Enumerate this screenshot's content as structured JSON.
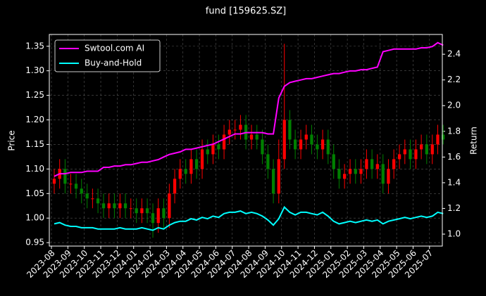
{
  "chart_data": {
    "type": "candlestick",
    "title": "fund [159625.SZ]",
    "ylabel": "Price",
    "y2label": "Return",
    "up_color": "#ff0000",
    "down_color": "#008000",
    "grid": true,
    "legend": "upper left",
    "x": [
      0.17,
      0.5,
      0.83,
      1.17,
      1.5,
      1.83,
      2.17,
      2.5,
      2.83,
      3.17,
      3.5,
      3.83,
      4.17,
      4.5,
      4.83,
      5.17,
      5.5,
      5.83,
      6.17,
      6.5,
      6.83,
      7.17,
      7.5,
      7.83,
      8.17,
      8.5,
      8.83,
      9.17,
      9.5,
      9.83,
      10.17,
      10.5,
      10.83,
      11.17,
      11.5,
      11.83,
      12.17,
      12.5,
      12.83,
      13.17,
      13.5,
      13.83,
      14.17,
      14.5,
      14.83,
      15.17,
      15.5,
      15.83,
      16.17,
      16.5,
      16.83,
      17.17,
      17.5,
      17.83,
      18.17,
      18.5,
      18.83,
      19.17,
      19.5,
      19.83,
      20.17,
      20.5,
      20.83,
      21.17,
      21.5,
      21.83,
      22.17,
      22.5,
      22.83,
      23.17,
      23.5,
      23.83
    ],
    "open": [
      1.07,
      1.08,
      1.1,
      1.07,
      1.07,
      1.06,
      1.05,
      1.04,
      1.04,
      1.03,
      1.02,
      1.03,
      1.02,
      1.03,
      1.02,
      1.02,
      1.01,
      1.02,
      1.01,
      0.99,
      1.02,
      1.0,
      1.05,
      1.08,
      1.1,
      1.09,
      1.12,
      1.1,
      1.14,
      1.13,
      1.15,
      1.14,
      1.17,
      1.18,
      1.18,
      1.19,
      1.16,
      1.17,
      1.16,
      1.13,
      1.1,
      1.05,
      1.12,
      1.2,
      1.16,
      1.14,
      1.16,
      1.17,
      1.15,
      1.14,
      1.16,
      1.13,
      1.1,
      1.08,
      1.09,
      1.1,
      1.09,
      1.1,
      1.12,
      1.1,
      1.11,
      1.07,
      1.1,
      1.12,
      1.13,
      1.14,
      1.12,
      1.14,
      1.15,
      1.13,
      1.15,
      1.17
    ],
    "high": [
      1.1,
      1.12,
      1.12,
      1.09,
      1.09,
      1.08,
      1.07,
      1.06,
      1.06,
      1.05,
      1.05,
      1.05,
      1.05,
      1.05,
      1.04,
      1.04,
      1.04,
      1.04,
      1.03,
      1.04,
      1.04,
      1.07,
      1.1,
      1.12,
      1.12,
      1.14,
      1.14,
      1.16,
      1.16,
      1.17,
      1.17,
      1.19,
      1.2,
      1.2,
      1.21,
      1.21,
      1.19,
      1.19,
      1.18,
      1.15,
      1.12,
      1.16,
      1.355,
      1.22,
      1.18,
      1.18,
      1.19,
      1.19,
      1.17,
      1.18,
      1.18,
      1.15,
      1.12,
      1.11,
      1.12,
      1.12,
      1.12,
      1.14,
      1.14,
      1.13,
      1.13,
      1.12,
      1.14,
      1.15,
      1.16,
      1.16,
      1.16,
      1.17,
      1.17,
      1.17,
      1.19,
      1.19
    ],
    "low": [
      1.05,
      1.06,
      1.05,
      1.05,
      1.04,
      1.03,
      1.02,
      1.02,
      1.01,
      1.0,
      1.0,
      1.0,
      1.0,
      1.0,
      1.0,
      0.99,
      0.99,
      0.99,
      0.96,
      0.97,
      0.98,
      0.98,
      1.03,
      1.06,
      1.07,
      1.07,
      1.08,
      1.08,
      1.11,
      1.11,
      1.12,
      1.12,
      1.15,
      1.16,
      1.16,
      1.14,
      1.14,
      1.14,
      1.11,
      1.08,
      1.03,
      1.03,
      1.1,
      1.14,
      1.12,
      1.12,
      1.14,
      1.13,
      1.12,
      1.12,
      1.11,
      1.08,
      1.06,
      1.06,
      1.07,
      1.07,
      1.07,
      1.08,
      1.08,
      1.08,
      1.05,
      1.05,
      1.08,
      1.1,
      1.11,
      1.1,
      1.1,
      1.12,
      1.11,
      1.11,
      1.13,
      1.15
    ],
    "close": [
      1.08,
      1.1,
      1.07,
      1.07,
      1.06,
      1.05,
      1.04,
      1.04,
      1.03,
      1.02,
      1.03,
      1.02,
      1.03,
      1.02,
      1.02,
      1.01,
      1.02,
      1.01,
      0.99,
      1.02,
      1.0,
      1.05,
      1.08,
      1.1,
      1.09,
      1.12,
      1.1,
      1.14,
      1.13,
      1.15,
      1.14,
      1.17,
      1.18,
      1.18,
      1.19,
      1.16,
      1.17,
      1.16,
      1.13,
      1.1,
      1.05,
      1.12,
      1.2,
      1.16,
      1.14,
      1.16,
      1.17,
      1.15,
      1.14,
      1.16,
      1.13,
      1.1,
      1.08,
      1.09,
      1.1,
      1.09,
      1.1,
      1.12,
      1.1,
      1.11,
      1.07,
      1.1,
      1.12,
      1.13,
      1.14,
      1.12,
      1.14,
      1.15,
      1.13,
      1.15,
      1.17,
      1.16
    ],
    "series": [
      {
        "name": "Swtool.com AI",
        "color": "#ff00ff",
        "axis": "y2",
        "values": [
          1.45,
          1.47,
          1.47,
          1.48,
          1.48,
          1.48,
          1.49,
          1.49,
          1.49,
          1.52,
          1.52,
          1.53,
          1.53,
          1.54,
          1.54,
          1.55,
          1.56,
          1.56,
          1.57,
          1.58,
          1.6,
          1.62,
          1.63,
          1.64,
          1.66,
          1.66,
          1.67,
          1.68,
          1.69,
          1.7,
          1.72,
          1.74,
          1.76,
          1.78,
          1.78,
          1.79,
          1.79,
          1.79,
          1.79,
          1.78,
          1.78,
          2.06,
          2.15,
          2.18,
          2.19,
          2.2,
          2.21,
          2.21,
          2.22,
          2.23,
          2.24,
          2.25,
          2.25,
          2.26,
          2.27,
          2.27,
          2.28,
          2.28,
          2.29,
          2.3,
          2.42,
          2.43,
          2.44,
          2.44,
          2.44,
          2.44,
          2.44,
          2.45,
          2.45,
          2.46,
          2.49,
          2.47
        ]
      },
      {
        "name": "Buy-and-Hold",
        "color": "#00ffff",
        "axis": "y2",
        "values": [
          1.08,
          1.09,
          1.07,
          1.06,
          1.06,
          1.05,
          1.05,
          1.05,
          1.04,
          1.04,
          1.04,
          1.04,
          1.05,
          1.04,
          1.04,
          1.04,
          1.05,
          1.04,
          1.03,
          1.05,
          1.04,
          1.07,
          1.09,
          1.1,
          1.1,
          1.12,
          1.11,
          1.13,
          1.12,
          1.14,
          1.13,
          1.16,
          1.17,
          1.17,
          1.18,
          1.16,
          1.17,
          1.16,
          1.14,
          1.11,
          1.07,
          1.12,
          1.21,
          1.17,
          1.15,
          1.17,
          1.17,
          1.16,
          1.15,
          1.17,
          1.14,
          1.1,
          1.08,
          1.09,
          1.1,
          1.09,
          1.1,
          1.11,
          1.1,
          1.11,
          1.08,
          1.1,
          1.11,
          1.12,
          1.13,
          1.12,
          1.13,
          1.14,
          1.13,
          1.14,
          1.17,
          1.16
        ]
      }
    ],
    "xlim": [
      -0.13,
      23.78
    ],
    "xticks": [
      {
        "value": 0,
        "label": "2023-08"
      },
      {
        "value": 1,
        "label": "2023-09"
      },
      {
        "value": 2,
        "label": "2023-10"
      },
      {
        "value": 3,
        "label": "2023-11"
      },
      {
        "value": 4,
        "label": "2023-12"
      },
      {
        "value": 5,
        "label": "2024-01"
      },
      {
        "value": 6,
        "label": "2024-02"
      },
      {
        "value": 7,
        "label": "2024-03"
      },
      {
        "value": 8,
        "label": "2024-04"
      },
      {
        "value": 9,
        "label": "2024-05"
      },
      {
        "value": 10,
        "label": "2024-06"
      },
      {
        "value": 11,
        "label": "2024-07"
      },
      {
        "value": 12,
        "label": "2024-08"
      },
      {
        "value": 13,
        "label": "2024-09"
      },
      {
        "value": 14,
        "label": "2024-10"
      },
      {
        "value": 15,
        "label": "2024-11"
      },
      {
        "value": 16,
        "label": "2024-12"
      },
      {
        "value": 17,
        "label": "2025-01"
      },
      {
        "value": 18,
        "label": "2025-02"
      },
      {
        "value": 19,
        "label": "2025-03"
      },
      {
        "value": 20,
        "label": "2025-04"
      },
      {
        "value": 21,
        "label": "2025-05"
      },
      {
        "value": 22,
        "label": "2025-06"
      },
      {
        "value": 23,
        "label": "2025-07"
      }
    ],
    "ylim": [
      0.943,
      1.374
    ],
    "yticks": [
      0.95,
      {
        "value": 1.0,
        "label": "1.00"
      },
      1.05,
      {
        "value": 1.1,
        "label": "1.10"
      },
      1.15,
      {
        "value": 1.2,
        "label": "1.20"
      },
      1.25,
      {
        "value": 1.3,
        "label": "1.30"
      },
      1.35
    ],
    "y2lim": [
      0.907,
      2.554
    ],
    "y2ticks": [
      {
        "value": 1.0,
        "label": "1.0"
      },
      1.2,
      1.4,
      1.6,
      1.8,
      {
        "value": 2.0,
        "label": "2.0"
      },
      2.2,
      2.4
    ]
  }
}
